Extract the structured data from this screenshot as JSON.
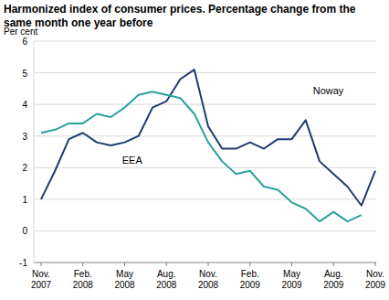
{
  "chart_data": {
    "type": "line",
    "title": "Harmonized index of consumer prices. Percentage change from the same month one year before",
    "y_label": "Per cent",
    "categories": [
      "Nov. 2007",
      null,
      null,
      "Feb. 2008",
      null,
      null,
      "May 2008",
      null,
      null,
      "Aug. 2008",
      null,
      null,
      "Nov. 2008",
      null,
      null,
      "Feb. 2009",
      null,
      null,
      "May 2009",
      null,
      null,
      "Aug. 2009",
      null,
      null,
      "Nov. 2009"
    ],
    "series": [
      {
        "name": "Noway",
        "color": "#1f3a70",
        "values": [
          1.0,
          1.9,
          2.9,
          3.1,
          2.8,
          2.7,
          2.8,
          3.0,
          3.9,
          4.1,
          4.8,
          5.1,
          3.3,
          2.6,
          2.6,
          2.8,
          2.6,
          2.9,
          2.9,
          3.5,
          2.2,
          1.8,
          1.4,
          0.8,
          1.9
        ]
      },
      {
        "name": "EEA",
        "color": "#2aa39c",
        "values": [
          3.1,
          3.2,
          3.4,
          3.4,
          3.7,
          3.6,
          3.9,
          4.3,
          4.4,
          4.3,
          4.2,
          3.7,
          2.8,
          2.2,
          1.8,
          1.9,
          1.4,
          1.3,
          0.9,
          0.7,
          0.3,
          0.6,
          0.3,
          0.5,
          null
        ]
      }
    ],
    "ylim": [
      -1,
      6
    ],
    "yticks": [
      -1,
      0,
      1,
      2,
      3,
      4,
      5,
      6
    ],
    "grid": true
  }
}
